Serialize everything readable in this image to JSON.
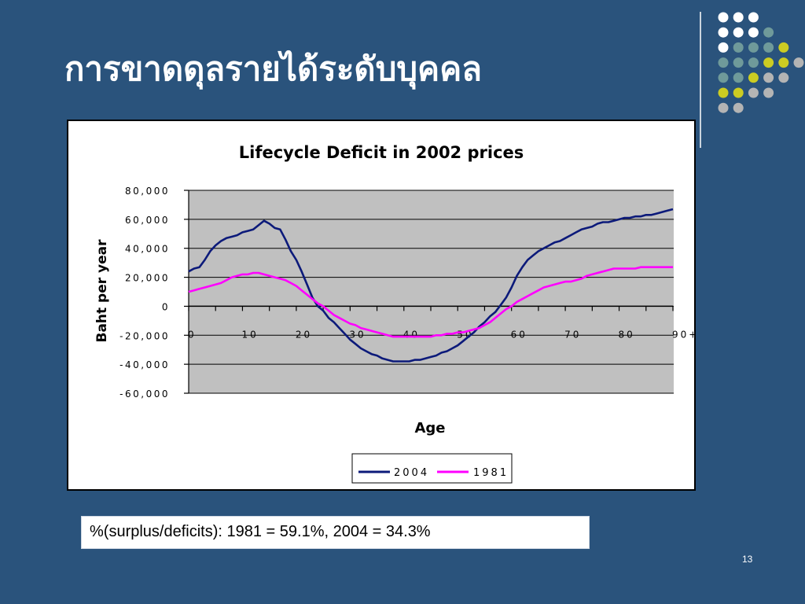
{
  "slide": {
    "title": "การขาดดุลรายได้ระดับบุคคล",
    "stat_text": "%(surplus/deficits): 1981 = 59.1%, 2004 = 34.3%",
    "page_number": "13"
  },
  "colors": {
    "background": "#2a537c",
    "plot_area": "#c0c0c0",
    "series_2004": "#0c1a7a",
    "series_1981": "#ff00ff",
    "dot_white": "#ffffff",
    "dot_teal": "#6f9a9a",
    "dot_yellow": "#cccc22",
    "dot_gray": "#b4b4b4"
  },
  "decoration": {
    "dot_rows": [
      [
        "dot_white",
        "dot_white",
        "dot_white"
      ],
      [
        "dot_white",
        "dot_white",
        "dot_white",
        "dot_teal"
      ],
      [
        "dot_white",
        "dot_teal",
        "dot_teal",
        "dot_teal",
        "dot_yellow"
      ],
      [
        "dot_teal",
        "dot_teal",
        "dot_teal",
        "dot_yellow",
        "dot_yellow",
        "dot_gray"
      ],
      [
        "dot_teal",
        "dot_teal",
        "dot_yellow",
        "dot_gray",
        "dot_gray"
      ],
      [
        "dot_yellow",
        "dot_yellow",
        "dot_gray",
        "dot_gray"
      ],
      [
        "dot_gray",
        "dot_gray"
      ]
    ]
  },
  "chart_data": {
    "type": "line",
    "title": "Lifecycle Deficit in 2002 prices",
    "xlabel": "Age",
    "ylabel": "Baht per year",
    "xlim": [
      0,
      90
    ],
    "ylim": [
      -60000,
      80000
    ],
    "x_ticks": [
      "0",
      "10",
      "20",
      "30",
      "40",
      "50",
      "60",
      "70",
      "80",
      "90+"
    ],
    "y_ticks": [
      "80,000",
      "60,000",
      "40,000",
      "20,000",
      "0",
      "-20,000",
      "-40,000",
      "-60,000"
    ],
    "grid": true,
    "legend_position": "bottom",
    "x": [
      0,
      1,
      2,
      3,
      4,
      5,
      6,
      7,
      8,
      9,
      10,
      11,
      12,
      13,
      14,
      15,
      16,
      17,
      18,
      19,
      20,
      21,
      22,
      23,
      24,
      25,
      26,
      27,
      28,
      29,
      30,
      31,
      32,
      33,
      34,
      35,
      36,
      37,
      38,
      39,
      40,
      41,
      42,
      43,
      44,
      45,
      46,
      47,
      48,
      49,
      50,
      51,
      52,
      53,
      54,
      55,
      56,
      57,
      58,
      59,
      60,
      61,
      62,
      63,
      64,
      65,
      66,
      67,
      68,
      69,
      70,
      71,
      72,
      73,
      74,
      75,
      76,
      77,
      78,
      79,
      80,
      81,
      82,
      83,
      84,
      85,
      86,
      87,
      88,
      89,
      90
    ],
    "series": [
      {
        "name": "2004",
        "values": [
          24000,
          26000,
          27000,
          32000,
          38000,
          42000,
          45000,
          47000,
          48000,
          49000,
          51000,
          52000,
          53000,
          56000,
          59000,
          57000,
          54000,
          53000,
          46000,
          38000,
          32000,
          24000,
          15000,
          6000,
          0,
          -3000,
          -8000,
          -11000,
          -15000,
          -19000,
          -23000,
          -26000,
          -29000,
          -31000,
          -33000,
          -34000,
          -36000,
          -37000,
          -38000,
          -38000,
          -38000,
          -38000,
          -37000,
          -37000,
          -36000,
          -35000,
          -34000,
          -32000,
          -31000,
          -29000,
          -27000,
          -24000,
          -21000,
          -18000,
          -14000,
          -11000,
          -7000,
          -4000,
          1000,
          6000,
          13000,
          21000,
          27000,
          32000,
          35000,
          38000,
          40000,
          42000,
          44000,
          45000,
          47000,
          49000,
          51000,
          53000,
          54000,
          55000,
          57000,
          58000,
          58000,
          59000,
          60000,
          61000,
          61000,
          62000,
          62000,
          63000,
          63000,
          64000,
          65000,
          66000,
          67000
        ]
      },
      {
        "name": "1981",
        "values": [
          10000,
          11000,
          12000,
          13000,
          14000,
          15000,
          16000,
          18000,
          20000,
          21000,
          22000,
          22000,
          23000,
          23000,
          22000,
          21000,
          20000,
          19000,
          18000,
          16000,
          14000,
          11000,
          8000,
          5000,
          2000,
          0,
          -3000,
          -6000,
          -8000,
          -10000,
          -12000,
          -13000,
          -15000,
          -16000,
          -17000,
          -18000,
          -19000,
          -20000,
          -21000,
          -21000,
          -21000,
          -21000,
          -21000,
          -21000,
          -21000,
          -21000,
          -20000,
          -20000,
          -19000,
          -19000,
          -18000,
          -18000,
          -17000,
          -16000,
          -15000,
          -13000,
          -11000,
          -8000,
          -5000,
          -2000,
          0,
          3000,
          5000,
          7000,
          9000,
          11000,
          13000,
          14000,
          15000,
          16000,
          17000,
          17000,
          18000,
          19000,
          21000,
          22000,
          23000,
          24000,
          25000,
          26000,
          26000,
          26000,
          26000,
          26000,
          27000,
          27000,
          27000,
          27000,
          27000,
          27000,
          27000
        ]
      }
    ]
  }
}
